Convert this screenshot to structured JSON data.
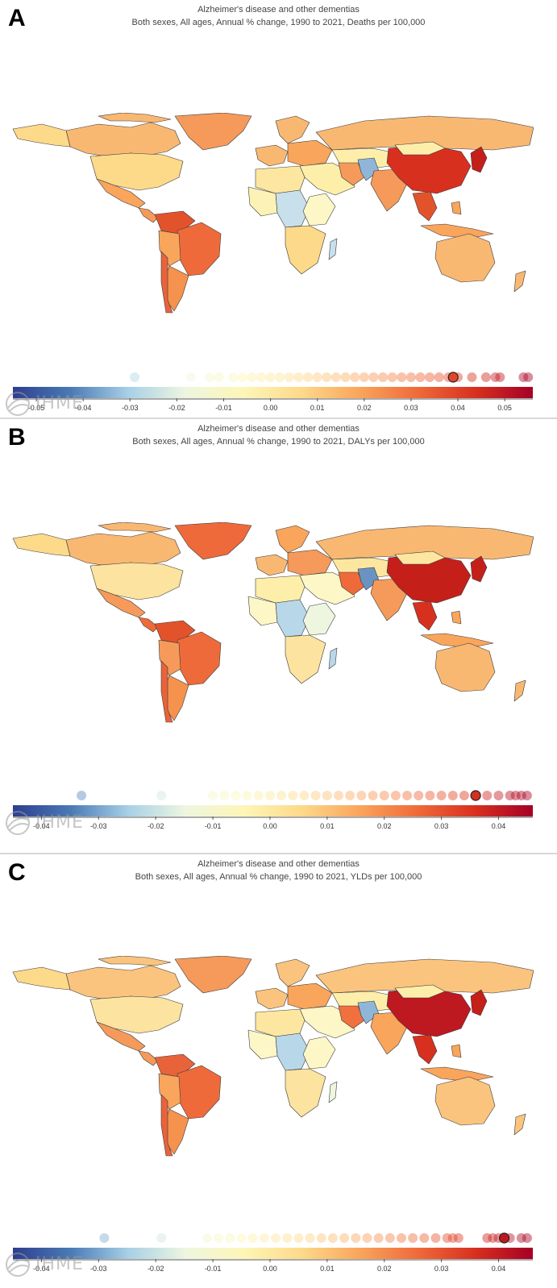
{
  "panels": [
    {
      "letter": "A",
      "title": "Alzheimer's disease and other dementias",
      "subtitle": "Both sexes, All ages, Annual % change, 1990 to 2021, Deaths per 100,000",
      "legend": {
        "min": -0.055,
        "max": 0.056,
        "ticks": [
          "-0.05",
          "-0.04",
          "-0.03",
          "-0.02",
          "-0.01",
          "0.00",
          "0.01",
          "0.02",
          "0.03",
          "0.04",
          "0.05"
        ],
        "tick_values": [
          -0.05,
          -0.04,
          -0.03,
          -0.02,
          -0.01,
          0.0,
          0.01,
          0.02,
          0.03,
          0.04,
          0.05
        ]
      },
      "dot_values": [
        -0.029,
        -0.017,
        -0.013,
        -0.011,
        -0.008,
        -0.006,
        -0.004,
        -0.002,
        0.0,
        0.002,
        0.004,
        0.006,
        0.008,
        0.01,
        0.012,
        0.014,
        0.016,
        0.018,
        0.02,
        0.022,
        0.024,
        0.026,
        0.028,
        0.03,
        0.032,
        0.034,
        0.036,
        0.038,
        0.04,
        0.043,
        0.046,
        0.048,
        0.049,
        0.054,
        0.055
      ],
      "selected_value": 0.039,
      "watermark": "IHME"
    },
    {
      "letter": "B",
      "title": "Alzheimer's disease and other dementias",
      "subtitle": "Both sexes, All ages, Annual % change, 1990 to 2021, DALYs per 100,000",
      "legend": {
        "min": -0.045,
        "max": 0.046,
        "ticks": [
          "-0.04",
          "-0.03",
          "-0.02",
          "-0.01",
          "0.00",
          "0.01",
          "0.02",
          "0.03",
          "0.04"
        ],
        "tick_values": [
          -0.04,
          -0.03,
          -0.02,
          -0.01,
          0.0,
          0.01,
          0.02,
          0.03,
          0.04
        ]
      },
      "dot_values": [
        -0.033,
        -0.019,
        -0.01,
        -0.008,
        -0.006,
        -0.004,
        -0.002,
        0.0,
        0.002,
        0.004,
        0.006,
        0.008,
        0.01,
        0.012,
        0.014,
        0.016,
        0.018,
        0.02,
        0.022,
        0.024,
        0.026,
        0.028,
        0.03,
        0.032,
        0.034,
        0.036,
        0.038,
        0.04,
        0.042,
        0.043,
        0.044,
        0.045
      ],
      "selected_value": 0.036,
      "watermark": "IHME"
    },
    {
      "letter": "C",
      "title": "Alzheimer's disease and other dementias",
      "subtitle": "Both sexes, All ages, Annual % change, 1990 to 2021, YLDs per 100,000",
      "legend": {
        "min": -0.045,
        "max": 0.046,
        "ticks": [
          "-0.04",
          "-0.03",
          "-0.02",
          "-0.01",
          "0.00",
          "0.01",
          "0.02",
          "0.03",
          "0.04"
        ],
        "tick_values": [
          -0.04,
          -0.03,
          -0.02,
          -0.01,
          0.0,
          0.01,
          0.02,
          0.03,
          0.04
        ]
      },
      "dot_values": [
        -0.029,
        -0.019,
        -0.011,
        -0.009,
        -0.007,
        -0.005,
        -0.003,
        -0.001,
        0.001,
        0.003,
        0.005,
        0.007,
        0.009,
        0.011,
        0.013,
        0.015,
        0.017,
        0.019,
        0.021,
        0.023,
        0.025,
        0.027,
        0.029,
        0.031,
        0.032,
        0.033,
        0.038,
        0.039,
        0.04,
        0.042,
        0.044,
        0.045
      ],
      "selected_value": 0.041,
      "watermark": "IHME"
    }
  ],
  "colors": {
    "scale": [
      "#2d3e8f",
      "#4a7ab5",
      "#a8d0e6",
      "#eef6e0",
      "#fdf6b6",
      "#fdd98a",
      "#f9a55c",
      "#ef6a3a",
      "#d7301f",
      "#a50026"
    ],
    "border": "#3a3a3a",
    "na_ocean": "#ffffff"
  }
}
